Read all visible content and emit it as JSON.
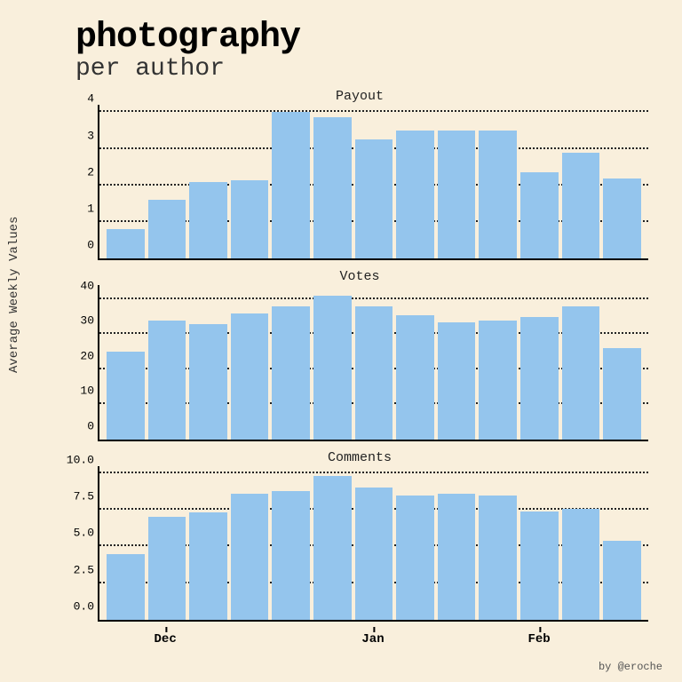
{
  "title": "photography",
  "subtitle": "per author",
  "ylabel": "Average Weekly Values",
  "credit": "by @eroche",
  "background_color": "#f9efdc",
  "bar_color": "#94c5ed",
  "grid_color": "#222222",
  "axis_color": "#000000",
  "font_family": "Courier New",
  "title_fontsize": 40,
  "subtitle_fontsize": 28,
  "chart_title_fontsize": 15,
  "tick_fontsize": 13,
  "aspect": "768x768",
  "xaxis": {
    "n_bars": 13,
    "labels": [
      {
        "text": "Dec",
        "index": 1
      },
      {
        "text": "Jan",
        "index": 6
      },
      {
        "text": "Feb",
        "index": 10
      }
    ]
  },
  "charts": [
    {
      "title": "Payout",
      "type": "bar",
      "ymax": 4.2,
      "yticks": [
        0,
        1,
        2,
        3,
        4
      ],
      "ytick_labels": [
        "0",
        "1",
        "2",
        "3",
        "4"
      ],
      "values": [
        0.8,
        1.6,
        2.1,
        2.15,
        4.0,
        3.85,
        3.25,
        3.5,
        3.5,
        3.5,
        2.35,
        2.9,
        2.2
      ]
    },
    {
      "title": "Votes",
      "type": "bar",
      "ymax": 44,
      "yticks": [
        0,
        10,
        20,
        30,
        40
      ],
      "ytick_labels": [
        "0",
        "10",
        "20",
        "30",
        "40"
      ],
      "values": [
        25,
        34,
        33,
        36,
        38,
        41,
        38,
        35.5,
        33.5,
        34,
        35,
        38,
        26
      ]
    },
    {
      "title": "Comments",
      "type": "bar",
      "ymax": 10.5,
      "yticks": [
        0.0,
        2.5,
        5.0,
        7.5,
        10.0
      ],
      "ytick_labels": [
        "0.0",
        "2.5",
        "5.0",
        "7.5",
        "10.0"
      ],
      "values": [
        4.5,
        7.0,
        7.3,
        8.6,
        8.8,
        9.8,
        9.0,
        8.5,
        8.6,
        8.5,
        7.4,
        7.6,
        5.4
      ]
    }
  ]
}
